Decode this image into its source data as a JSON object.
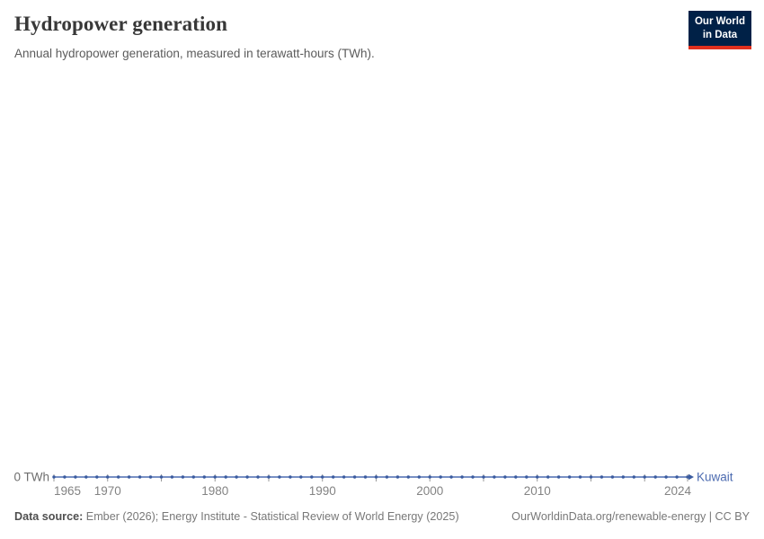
{
  "header": {
    "title": "Hydropower generation",
    "subtitle": "Annual hydropower generation, measured in terawatt-hours (TWh)."
  },
  "logo": {
    "line1": "Our World",
    "line2": "in Data",
    "bg_color": "#002147",
    "bar_color": "#e0301e"
  },
  "chart_data": {
    "type": "line",
    "title": "Hydropower generation",
    "unit": "TWh",
    "entity_label": "Kuwait",
    "grid": false,
    "legend_position": "end-of-line",
    "x": [
      1965,
      1966,
      1967,
      1968,
      1969,
      1970,
      1971,
      1972,
      1973,
      1974,
      1975,
      1976,
      1977,
      1978,
      1979,
      1980,
      1981,
      1982,
      1983,
      1984,
      1985,
      1986,
      1987,
      1988,
      1989,
      1990,
      1991,
      1992,
      1993,
      1994,
      1995,
      1996,
      1997,
      1998,
      1999,
      2000,
      2001,
      2002,
      2003,
      2004,
      2005,
      2006,
      2007,
      2008,
      2009,
      2010,
      2011,
      2012,
      2013,
      2014,
      2015,
      2016,
      2017,
      2018,
      2019,
      2020,
      2021,
      2022,
      2023,
      2024
    ],
    "series": [
      {
        "name": "Kuwait",
        "color": "#4c6bb0",
        "marker_color": "#3a5b9f",
        "values": [
          0,
          0,
          0,
          0,
          0,
          0,
          0,
          0,
          0,
          0,
          0,
          0,
          0,
          0,
          0,
          0,
          0,
          0,
          0,
          0,
          0,
          0,
          0,
          0,
          0,
          0,
          0,
          0,
          0,
          0,
          0,
          0,
          0,
          0,
          0,
          0,
          0,
          0,
          0,
          0,
          0,
          0,
          0,
          0,
          0,
          0,
          0,
          0,
          0,
          0,
          0,
          0,
          0,
          0,
          0,
          0,
          0,
          0,
          0,
          0
        ]
      }
    ],
    "y_axis": {
      "min": 0,
      "zero_label": "0 TWh"
    },
    "x_axis": {
      "tick_labels": [
        1965,
        1970,
        1980,
        1990,
        2000,
        2010,
        2024
      ],
      "minor_ticks": [
        1965,
        1970,
        1975,
        1980,
        1985,
        1990,
        1995,
        2000,
        2005,
        2010,
        2015,
        2020,
        2024
      ]
    }
  },
  "footer": {
    "datasource_label": "Data source:",
    "datasource_text": " Ember (2026); Energy Institute - Statistical Review of World Energy (2025)",
    "right": "OurWorldinData.org/renewable-energy | CC BY"
  }
}
